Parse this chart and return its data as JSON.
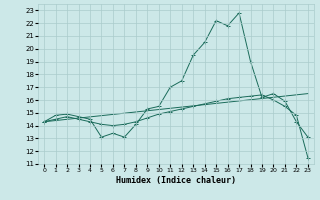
{
  "xlabel": "Humidex (Indice chaleur)",
  "xlim": [
    -0.5,
    23.5
  ],
  "ylim": [
    11,
    23.5
  ],
  "yticks": [
    11,
    12,
    13,
    14,
    15,
    16,
    17,
    18,
    19,
    20,
    21,
    22,
    23
  ],
  "xticks": [
    0,
    1,
    2,
    3,
    4,
    5,
    6,
    7,
    8,
    9,
    10,
    11,
    12,
    13,
    14,
    15,
    16,
    17,
    18,
    19,
    20,
    21,
    22,
    23
  ],
  "bg_color": "#cce8e8",
  "grid_color": "#aacccc",
  "line_color": "#1a6b5a",
  "line1_x": [
    0,
    1,
    2,
    3,
    4,
    5,
    6,
    7,
    8,
    9,
    10,
    11,
    12,
    13,
    14,
    15,
    16,
    17,
    18,
    19,
    20,
    21,
    22,
    23
  ],
  "line1_y": [
    14.3,
    14.8,
    14.9,
    14.7,
    14.5,
    13.1,
    13.4,
    13.1,
    14.1,
    15.3,
    15.5,
    17.0,
    17.5,
    19.5,
    20.5,
    22.2,
    21.8,
    22.8,
    19.0,
    16.2,
    16.5,
    15.9,
    14.3,
    13.1
  ],
  "line2_x": [
    0,
    1,
    2,
    3,
    4,
    5,
    6,
    7,
    8,
    9,
    10,
    11,
    12,
    13,
    14,
    15,
    16,
    17,
    18,
    19,
    20,
    21,
    22,
    23
  ],
  "line2_y": [
    14.3,
    14.5,
    14.7,
    14.5,
    14.3,
    14.1,
    14.0,
    14.1,
    14.3,
    14.6,
    14.9,
    15.1,
    15.3,
    15.5,
    15.7,
    15.9,
    16.1,
    16.2,
    16.3,
    16.4,
    16.0,
    15.5,
    14.8,
    11.5
  ],
  "line3_x": [
    0,
    23
  ],
  "line3_y": [
    14.3,
    16.5
  ]
}
